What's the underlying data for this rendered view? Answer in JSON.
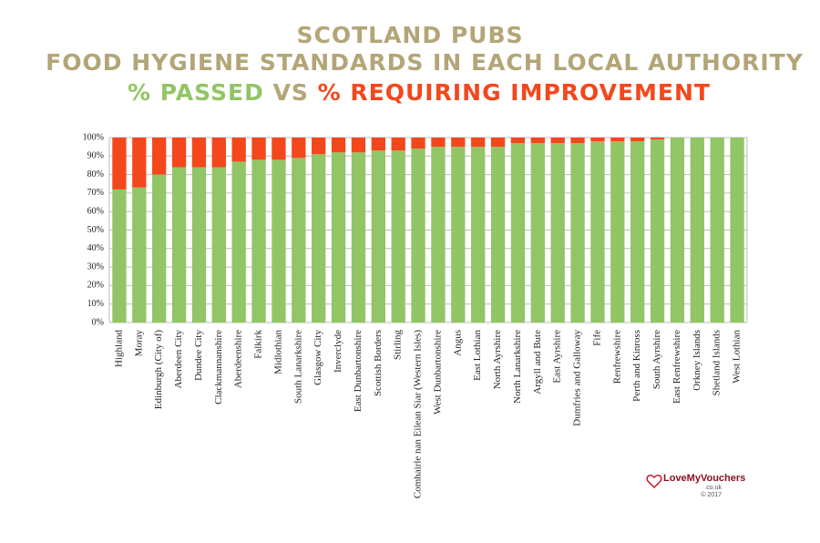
{
  "chart_data": {
    "type": "stacked_bar",
    "title": [
      "SCOTLAND PUBS",
      "FOOD HYGIENE STANDARDS IN EACH LOCAL AUTHORITY"
    ],
    "subtitle_joiner": "VS",
    "categories": [
      "Highland",
      "Moray",
      "Edinburgh (City of)",
      "Aberdeen City",
      "Dundee City",
      "Clackmannanshire",
      "Aberdeenshire",
      "Falkirk",
      "Midlothian",
      "South Lanarkshire",
      "Glasgow City",
      "Inverclyde",
      "East Dunbartonshire",
      "Scottish Borders",
      "Stirling",
      "Comhairle nan Eilean Siar (Western Isles)",
      "West Dunbartonshire",
      "Angus",
      "East Lothian",
      "North Ayrshire",
      "North Lanarkshire",
      "Argyll and Bute",
      "East Ayrshire",
      "Dumfries and Galloway",
      "Fife",
      "Renfrewshire",
      "Perth and Kinross",
      "South Ayrshire",
      "East Renfrewshire",
      "Orkney Islands",
      "Shetland Islands",
      "West Lothian"
    ],
    "series": [
      {
        "name": "% PASSED",
        "color": "#92c565",
        "values": [
          72,
          73,
          80,
          84,
          84,
          84,
          87,
          88,
          88,
          89,
          91,
          92,
          92,
          93,
          93,
          94,
          95,
          95,
          95,
          95,
          97,
          97,
          97,
          97,
          98,
          98,
          98,
          99,
          100,
          100,
          100,
          100
        ]
      },
      {
        "name": "% REQUIRING IMPROVEMENT",
        "color": "#f4471c",
        "values": [
          28,
          27,
          20,
          16,
          16,
          16,
          13,
          12,
          12,
          11,
          9,
          8,
          8,
          7,
          7,
          6,
          5,
          5,
          5,
          5,
          3,
          3,
          3,
          3,
          2,
          2,
          2,
          1,
          0,
          0,
          0,
          0
        ]
      }
    ],
    "title_color": "#b3a577",
    "ylim": [
      0,
      100
    ],
    "yticks": [
      {
        "value": 0,
        "label": "0%"
      },
      {
        "value": 10,
        "label": "10%"
      },
      {
        "value": 20,
        "label": "20%"
      },
      {
        "value": 30,
        "label": "30%"
      },
      {
        "value": 40,
        "label": "40%"
      },
      {
        "value": 50,
        "label": "50%"
      },
      {
        "value": 60,
        "label": "60%"
      },
      {
        "value": 70,
        "label": "70%"
      },
      {
        "value": 80,
        "label": "80%"
      },
      {
        "value": 90,
        "label": "90%"
      },
      {
        "value": 100,
        "label": "100%"
      }
    ],
    "grid": true,
    "logo": {
      "name": "LoveMyVouchers",
      "domain": ".co.uk",
      "year": "© 2017"
    }
  }
}
